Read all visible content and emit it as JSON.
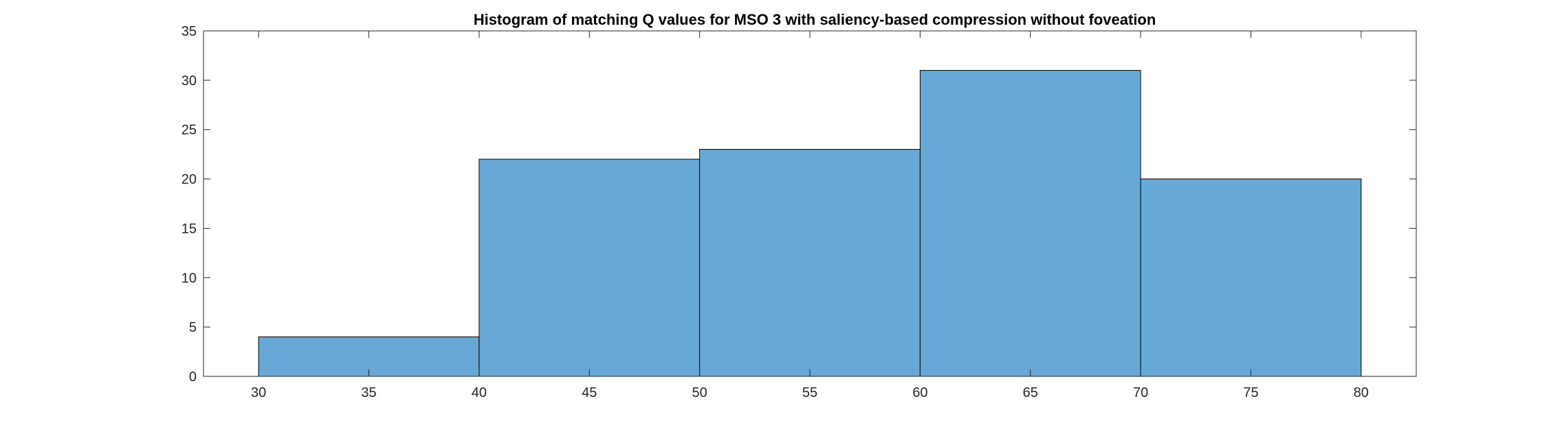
{
  "chart_data": {
    "type": "bar",
    "title": "Histogram of matching Q values for MSO 3 with saliency-based compression without foveation",
    "xlabel": "",
    "ylabel": "",
    "bins": [
      {
        "start": 30,
        "end": 40,
        "count": 4
      },
      {
        "start": 40,
        "end": 50,
        "count": 22
      },
      {
        "start": 50,
        "end": 60,
        "count": 23
      },
      {
        "start": 60,
        "end": 70,
        "count": 31
      },
      {
        "start": 70,
        "end": 80,
        "count": 20
      }
    ],
    "xlim": [
      27.5,
      82.5
    ],
    "ylim": [
      0,
      35
    ],
    "xticks": [
      30,
      35,
      40,
      45,
      50,
      55,
      60,
      65,
      70,
      75,
      80
    ],
    "yticks": [
      0,
      5,
      10,
      15,
      20,
      25,
      30,
      35
    ],
    "bar_color": "#67a9d6",
    "edge_color": "#000000",
    "grid": false,
    "legend": false
  }
}
